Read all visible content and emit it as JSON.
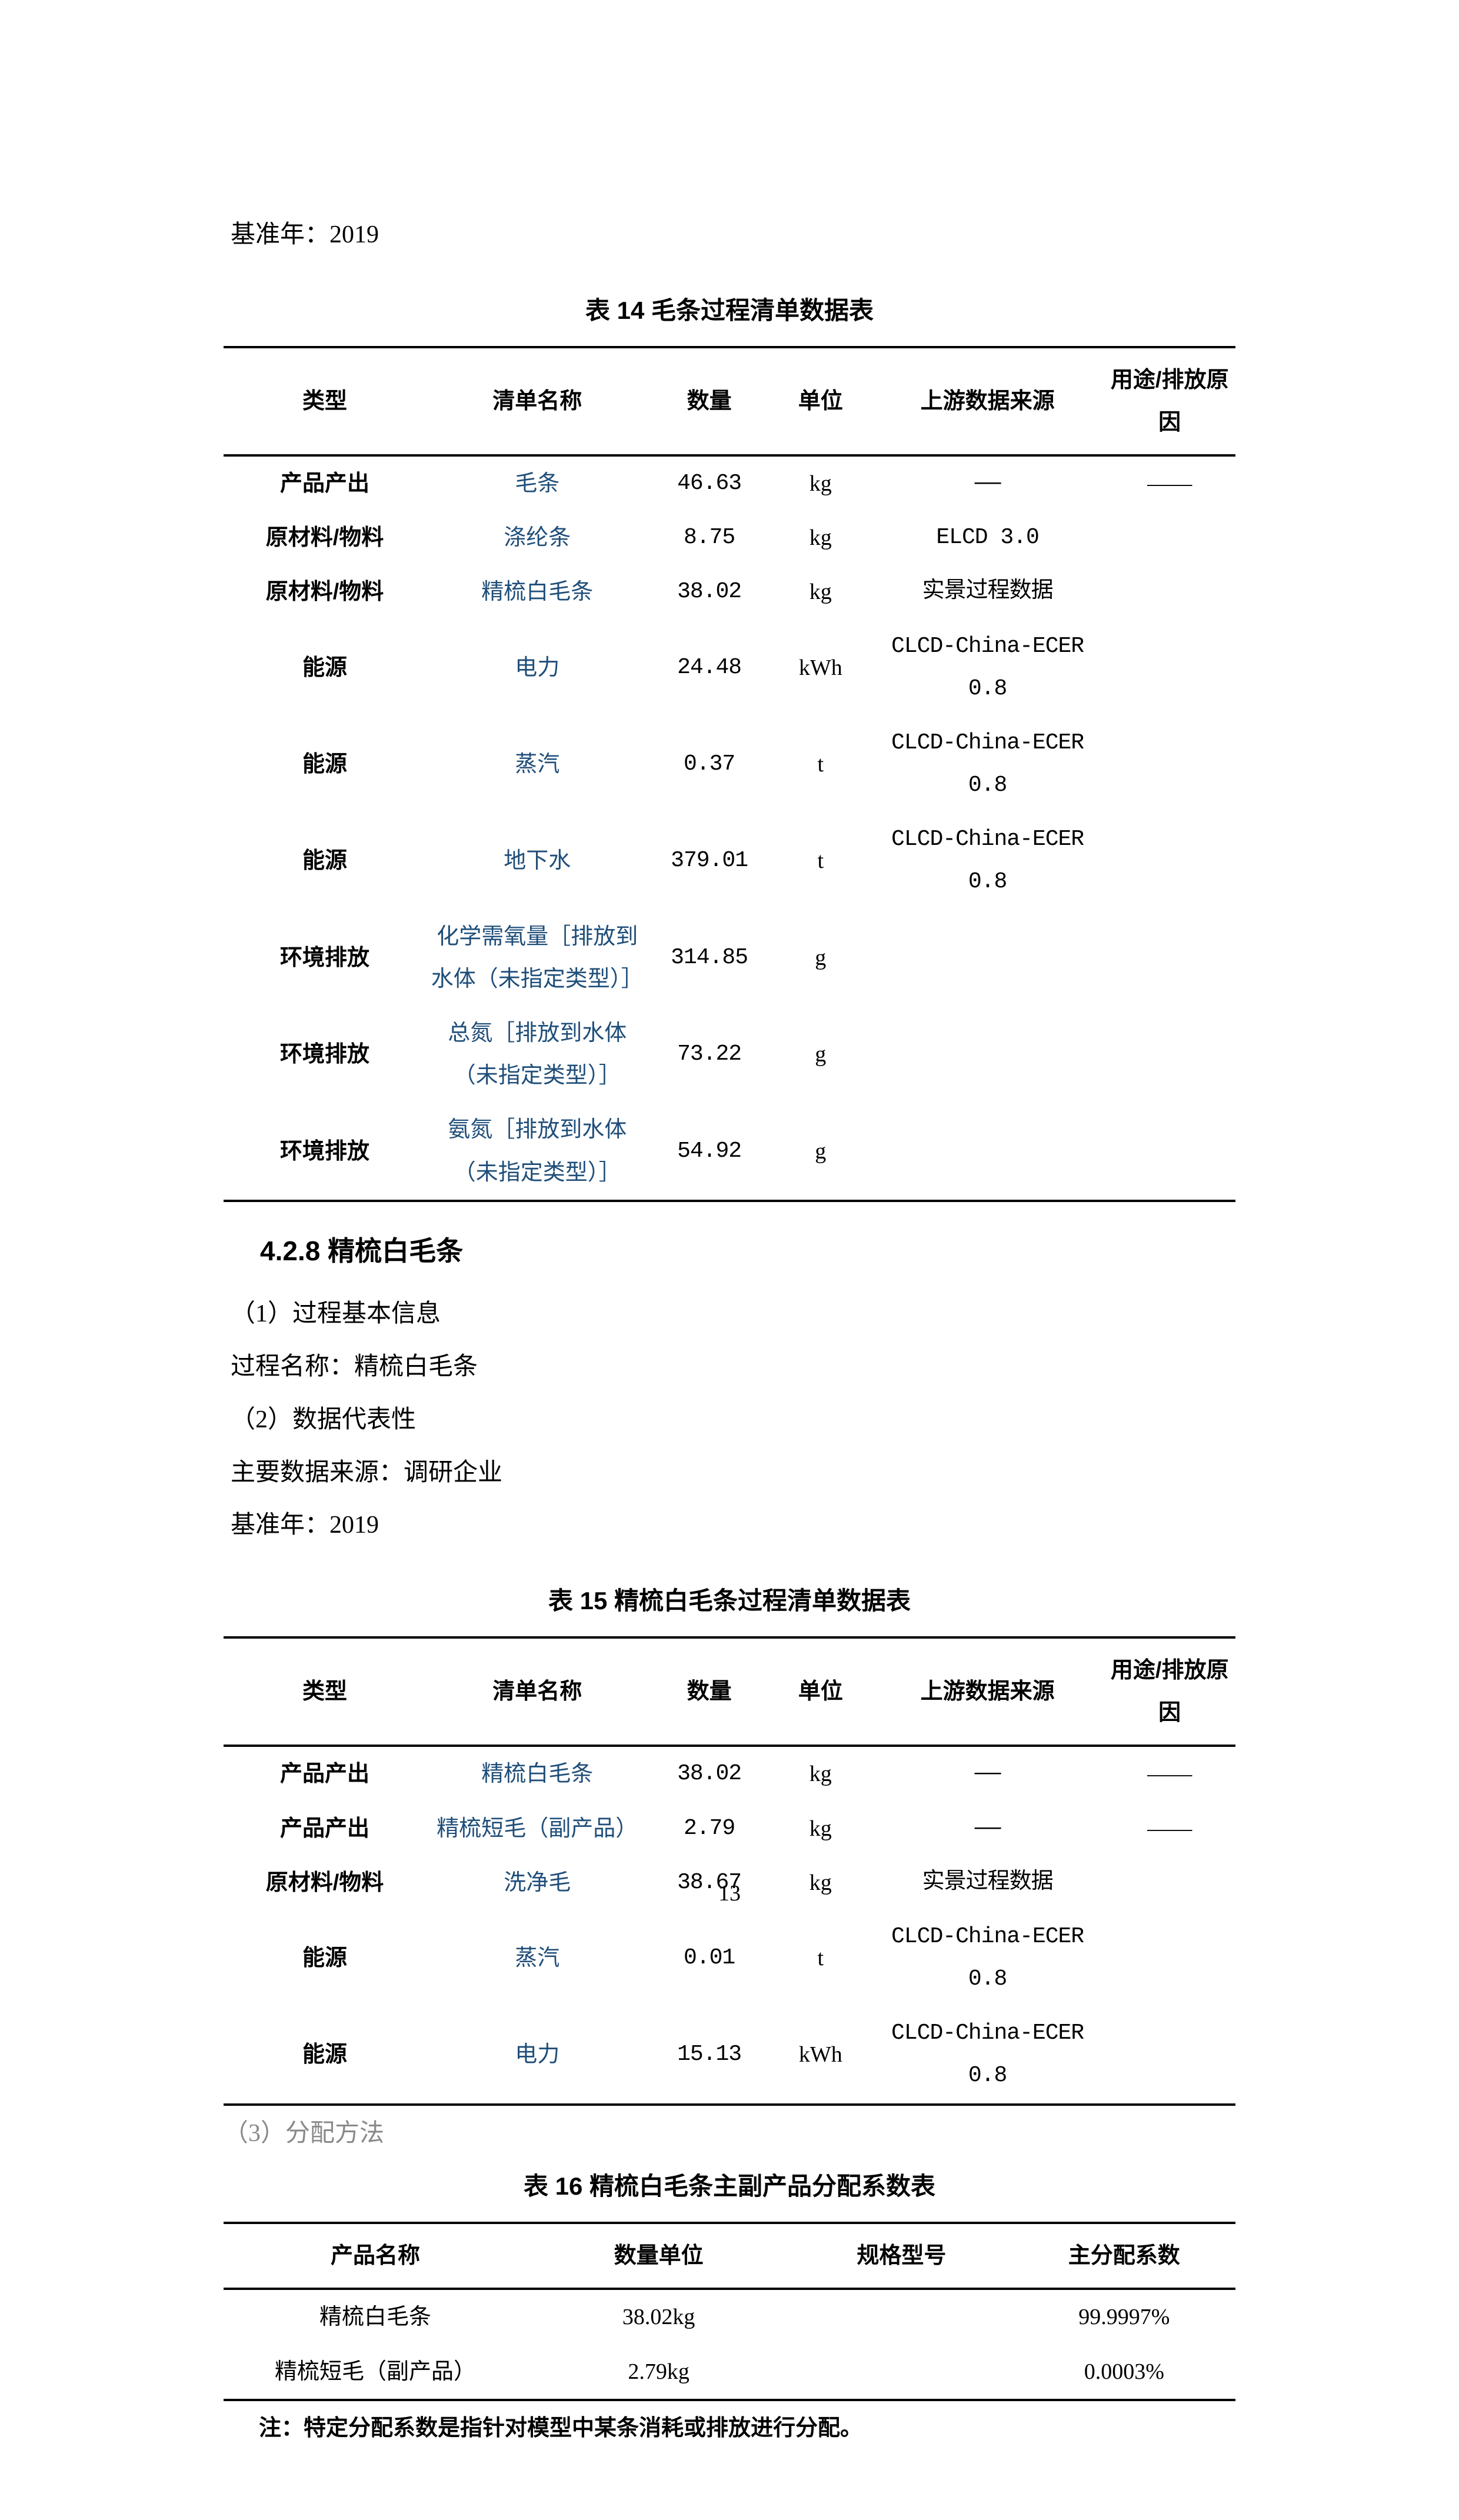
{
  "top_line": "基准年：2019",
  "table14": {
    "caption": "表 14  毛条过程清单数据表",
    "headers": [
      "类型",
      "清单名称",
      "数量",
      "单位",
      "上游数据来源",
      "用途/排放原因"
    ],
    "rows": [
      {
        "type": "产品产出",
        "name": "毛条",
        "qty": "46.63",
        "unit": "kg",
        "src": "——",
        "reason": "——"
      },
      {
        "type": "原材料/物料",
        "name": "涤纶条",
        "qty": "8.75",
        "unit": "kg",
        "src": "ELCD 3.0",
        "reason": ""
      },
      {
        "type": "原材料/物料",
        "name": "精梳白毛条",
        "qty": "38.02",
        "unit": "kg",
        "src": "实景过程数据",
        "reason": ""
      },
      {
        "type": "能源",
        "name": "电力",
        "qty": "24.48",
        "unit": "kWh",
        "src": "CLCD-China-ECER 0.8",
        "reason": ""
      },
      {
        "type": "能源",
        "name": "蒸汽",
        "qty": "0.37",
        "unit": "t",
        "src": "CLCD-China-ECER 0.8",
        "reason": ""
      },
      {
        "type": "能源",
        "name": "地下水",
        "qty": "379.01",
        "unit": "t",
        "src": "CLCD-China-ECER 0.8",
        "reason": ""
      },
      {
        "type": "环境排放",
        "name": "化学需氧量［排放到水体（未指定类型）］",
        "qty": "314.85",
        "unit": "g",
        "src": "",
        "reason": ""
      },
      {
        "type": "环境排放",
        "name": "总氮［排放到水体（未指定类型）］",
        "qty": "73.22",
        "unit": "g",
        "src": "",
        "reason": ""
      },
      {
        "type": "环境排放",
        "name": "氨氮［排放到水体（未指定类型）］",
        "qty": "54.92",
        "unit": "g",
        "src": "",
        "reason": ""
      }
    ]
  },
  "section_428_heading": "4.2.8 精梳白毛条",
  "section_428_lines": [
    "（1）过程基本信息",
    "过程名称：精梳白毛条",
    "（2）数据代表性",
    "主要数据来源：调研企业",
    "基准年：2019"
  ],
  "table15": {
    "caption": "表 15  精梳白毛条过程清单数据表",
    "headers": [
      "类型",
      "清单名称",
      "数量",
      "单位",
      "上游数据来源",
      "用途/排放原因"
    ],
    "rows": [
      {
        "type": "产品产出",
        "name": "精梳白毛条",
        "qty": "38.02",
        "unit": "kg",
        "src": "——",
        "reason": "——"
      },
      {
        "type": "产品产出",
        "name": "精梳短毛（副产品）",
        "qty": "2.79",
        "unit": "kg",
        "src": "——",
        "reason": "——"
      },
      {
        "type": "原材料/物料",
        "name": "洗净毛",
        "qty": "38.67",
        "unit": "kg",
        "src": "实景过程数据",
        "reason": ""
      },
      {
        "type": "能源",
        "name": "蒸汽",
        "qty": "0.01",
        "unit": "t",
        "src": "CLCD-China-ECER 0.8",
        "reason": ""
      },
      {
        "type": "能源",
        "name": "电力",
        "qty": "15.13",
        "unit": "kWh",
        "src": "CLCD-China-ECER 0.8",
        "reason": ""
      }
    ]
  },
  "method_line": "（3）分配方法",
  "table16": {
    "caption": "表 16  精梳白毛条主副产品分配系数表",
    "headers": [
      "产品名称",
      "数量单位",
      "规格型号",
      "主分配系数"
    ],
    "rows": [
      {
        "pname": "精梳白毛条",
        "qtyunit": "38.02kg",
        "spec": "",
        "coef": "99.9997%"
      },
      {
        "pname": "精梳短毛（副产品）",
        "qtyunit": "2.79kg",
        "spec": "",
        "coef": "0.0003%"
      }
    ]
  },
  "note": "注：特定分配系数是指针对模型中某条消耗或排放进行分配。",
  "page_number": "13"
}
